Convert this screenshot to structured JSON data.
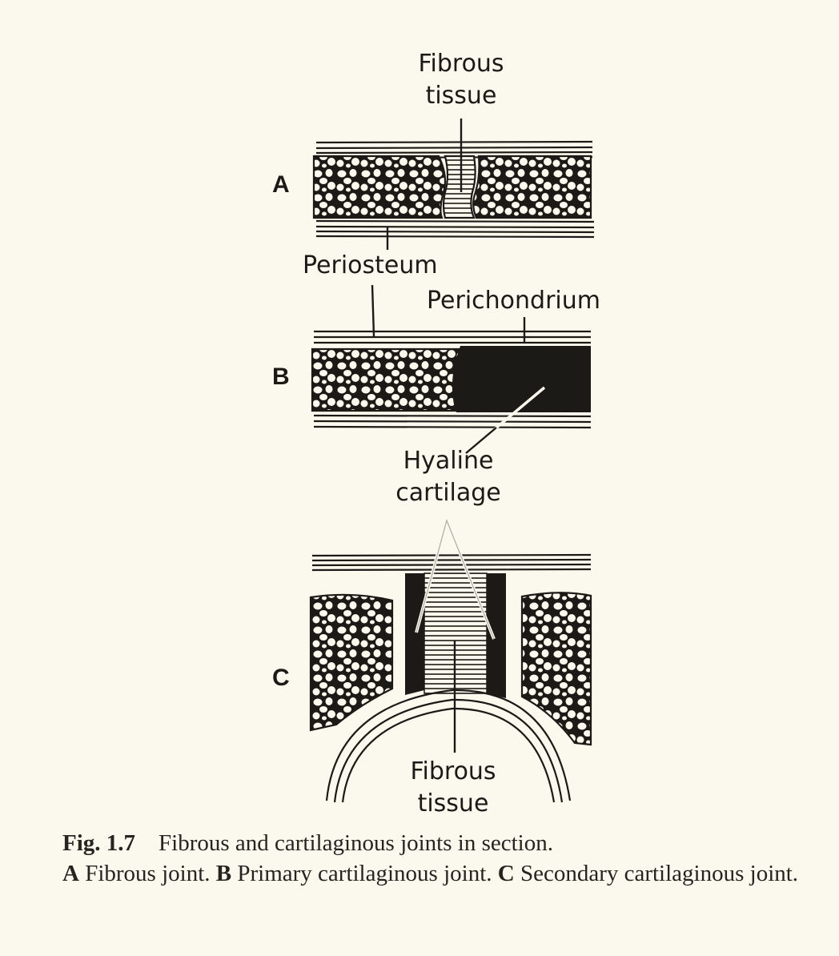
{
  "panels": {
    "a": "A",
    "b": "B",
    "c": "C"
  },
  "labels": {
    "fibrous_tissue_top": [
      "Fibrous",
      "tissue"
    ],
    "periosteum": "Periosteum",
    "perichondrium": "Perichondrium",
    "hyaline_cartilage": [
      "Hyaline",
      "cartilage"
    ],
    "fibrous_tissue_bottom": [
      "Fibrous",
      "tissue"
    ]
  },
  "caption": {
    "fig_number": "Fig. 1.7",
    "title": "Fibrous and cartilaginous joints in section.",
    "a_key": "A",
    "a_text": "Fibrous joint.",
    "b_key": "B",
    "b_text": "Primary cartilaginous joint.",
    "c_key": "C",
    "c_text": "Secondary cartilaginous joint."
  }
}
